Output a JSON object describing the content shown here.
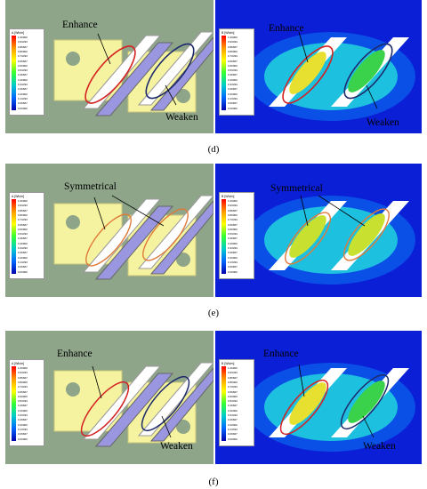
{
  "panels": [
    {
      "caption": "(d)",
      "left": {
        "label1": "Enhance",
        "label2": "Weaken"
      },
      "right": {
        "label1": "Enhance",
        "label2": "Weaken"
      }
    },
    {
      "caption": "(e)",
      "left": {
        "label1": "Symmetrical"
      },
      "right": {
        "label1": "Symmetrical"
      }
    },
    {
      "caption": "(f)",
      "left": {
        "label1": "Enhance",
        "label2": "Weaken"
      },
      "right": {
        "label1": "Enhance",
        "label2": "Weaken"
      }
    }
  ],
  "legend": {
    "title_b": "B [Wb/m]",
    "title_a": "A [Wb/m]",
    "rows": [
      "1.00000",
      "0.93333",
      "0.86667",
      "0.80000",
      "0.73333",
      "0.66667",
      "0.60000",
      "0.53333",
      "0.46667",
      "0.40000",
      "0.33333",
      "0.26667",
      "0.20000",
      "0.13333",
      "0.06667",
      "0.00000"
    ]
  },
  "colors": {
    "green_bg": "#8fa58a",
    "blue_bg": "#0a1fd6",
    "yellow_plate": "#f5f3a0",
    "purple_plate": "#9a96e0",
    "enhance_ellipse": "#d42020",
    "weaken_ellipse": "#1d2a6b",
    "symmetric_ellipse": "#e07a3a"
  }
}
